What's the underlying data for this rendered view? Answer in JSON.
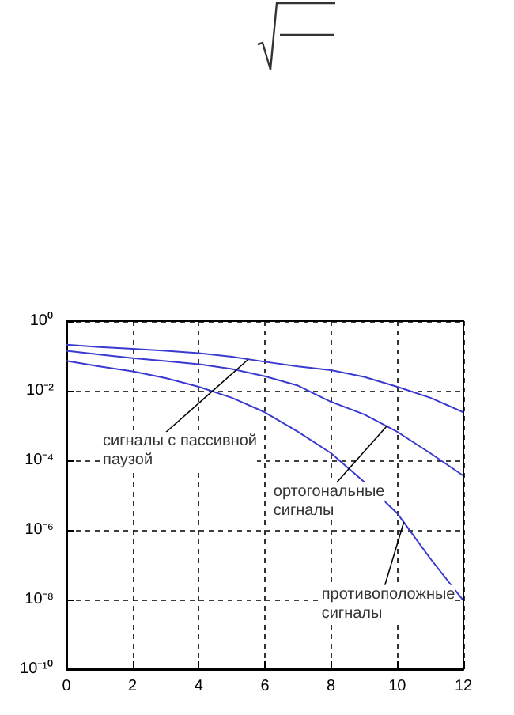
{
  "chart_data": {
    "type": "line",
    "x": [
      0,
      1,
      2,
      3,
      4,
      5,
      6,
      7,
      8,
      9,
      10,
      11,
      12
    ],
    "series": [
      {
        "color": "#3a3ad0",
        "values": [
          0.21,
          0.18,
          0.16,
          0.14,
          0.12,
          0.095,
          0.068,
          0.05,
          0.039,
          0.025,
          0.013,
          0.0063,
          0.0024
        ]
      },
      {
        "color": "#3a3ad0",
        "values": [
          0.14,
          0.11,
          0.087,
          0.071,
          0.058,
          0.042,
          0.026,
          0.014,
          0.0048,
          0.0021,
          0.00066,
          0.00016,
          3.6e-05
        ]
      },
      {
        "color": "#3a3ad0",
        "values": [
          0.072,
          0.05,
          0.036,
          0.023,
          0.013,
          0.0063,
          0.0024,
          0.00066,
          0.00016,
          2.4e-05,
          3e-06,
          1.5e-07,
          9.3e-09
        ]
      }
    ],
    "xlim": [
      0,
      12
    ],
    "xticks": [
      0,
      2,
      4,
      6,
      8,
      10,
      12
    ],
    "log": "y",
    "ylim": [
      1e-10,
      1
    ],
    "yticks": [
      {
        "value": 1e-10,
        "label": "10⁻¹⁰"
      },
      {
        "value": 1e-08,
        "label": "10⁻⁸"
      },
      {
        "value": 1e-06,
        "label": "10⁻⁶"
      },
      {
        "value": 0.0001,
        "label": "10⁻⁴"
      },
      {
        "value": 0.01,
        "label": "10⁻²"
      },
      {
        "value": 1,
        "label": "10⁰"
      }
    ],
    "grid": true,
    "marker": "none",
    "line_style": "solid",
    "annotations": [
      {
        "text": "сигналы с пассивной\nпаузой",
        "x": 5.5,
        "y": 0.08
      },
      {
        "text": "ортогональные\nсигналы",
        "x": 9.7,
        "y": 0.001
      },
      {
        "text": "противоположные\nсигналы",
        "x": 10.2,
        "y": 1.7e-06
      }
    ]
  }
}
